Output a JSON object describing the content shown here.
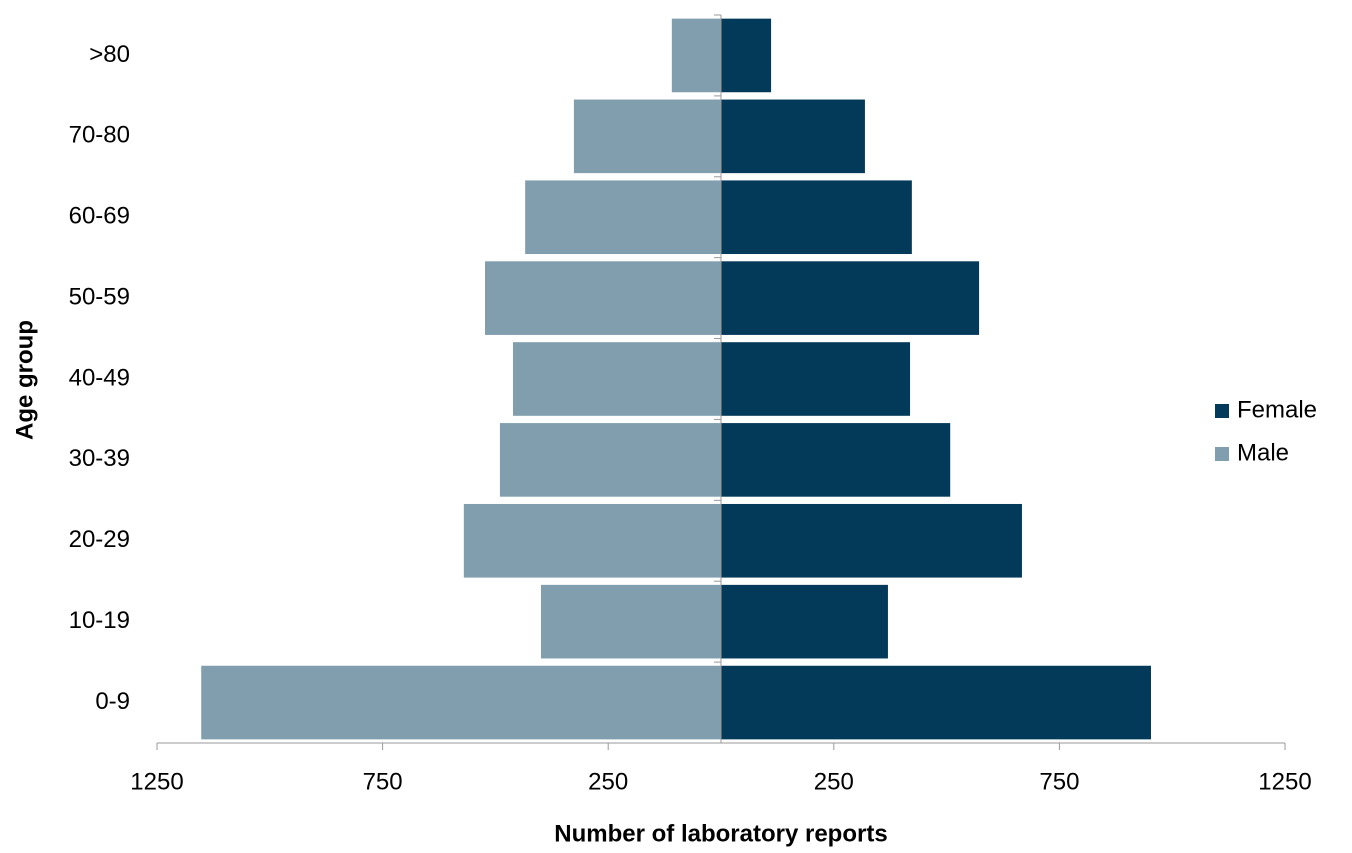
{
  "chart_data": {
    "type": "pyramid",
    "orientation": "horizontal",
    "xlabel": "Number of laboratory reports",
    "ylabel": "Age group",
    "categories": [
      "0-9",
      "10-19",
      "20-29",
      "30-39",
      "40-49",
      "50-59",
      "60-69",
      "70-80",
      ">80"
    ],
    "series": [
      {
        "name": "Female",
        "color": "#033a5a",
        "values": [
          953,
          370,
          667,
          508,
          419,
          572,
          423,
          319,
          111
        ]
      },
      {
        "name": "Male",
        "color": "#809eae",
        "values": [
          -1152,
          -399,
          -570,
          -490,
          -461,
          -523,
          -434,
          -326,
          -109
        ]
      }
    ],
    "xlim": [
      -1250,
      1250
    ],
    "xticks": [
      {
        "value": -1250,
        "label": "1250"
      },
      {
        "value": -750,
        "label": "750"
      },
      {
        "value": -250,
        "label": "250"
      },
      250,
      750,
      1250
    ],
    "legend": "right"
  }
}
